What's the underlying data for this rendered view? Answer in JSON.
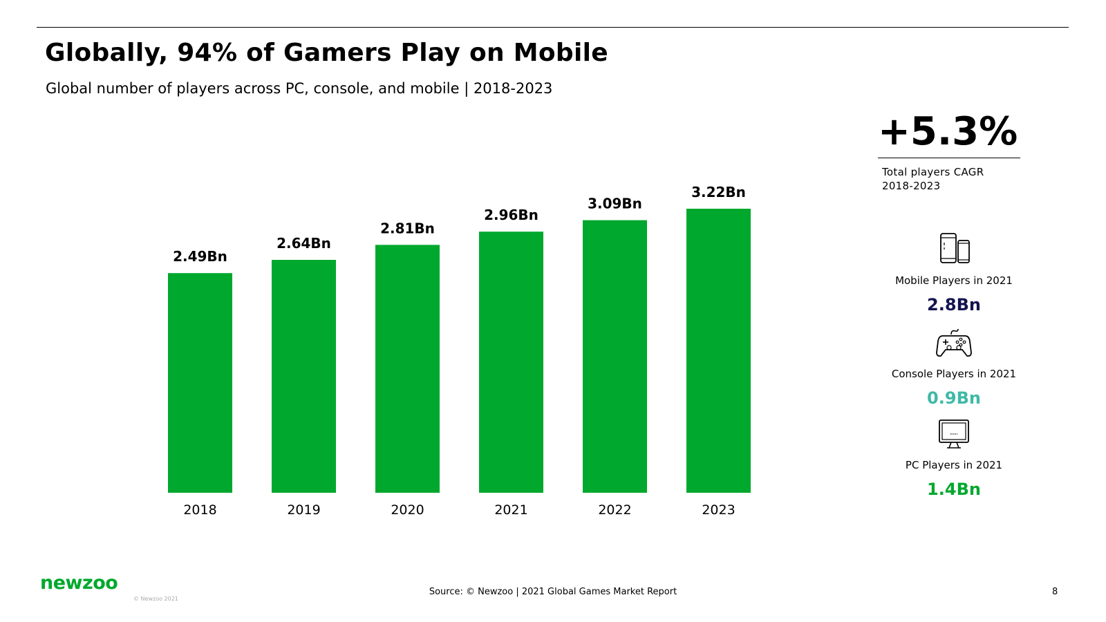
{
  "header": {
    "title": "Globally, 94% of Gamers Play on Mobile",
    "subtitle": "Global number of players across PC, console, and mobile | 2018-2023"
  },
  "chart_data": {
    "type": "bar",
    "categories": [
      "2018",
      "2019",
      "2020",
      "2021",
      "2022",
      "2023"
    ],
    "values": [
      2.49,
      2.64,
      2.81,
      2.96,
      3.09,
      3.22
    ],
    "data_labels": [
      "2.49Bn",
      "2.64Bn",
      "2.81Bn",
      "2.96Bn",
      "3.09Bn",
      "3.22Bn"
    ],
    "bar_color": "#00a82d",
    "xlabel": "",
    "ylabel": "",
    "ylim": [
      0,
      3.4
    ],
    "grid": false,
    "legend": "none"
  },
  "kpi": {
    "value": "+5.3%",
    "label_line1": "Total players CAGR",
    "label_line2": "2018-2023"
  },
  "stats": {
    "mobile": {
      "icon": "mobile-devices-icon",
      "label": "Mobile Players in 2021",
      "value": "2.8Bn",
      "color": "#141450"
    },
    "console": {
      "icon": "gamepad-icon",
      "label": "Console Players in 2021",
      "value": "0.9Bn",
      "color": "#3fb9a8"
    },
    "pc": {
      "icon": "monitor-icon",
      "label": "PC Players in 2021",
      "value": "1.4Bn",
      "color": "#00a82d"
    }
  },
  "footer": {
    "logo": "newzoo",
    "logo_color": "#00a82d",
    "copyright": "© Newzoo 2021",
    "source": "Source: © Newzoo | 2021 Global Games Market Report",
    "page_number": "8"
  }
}
